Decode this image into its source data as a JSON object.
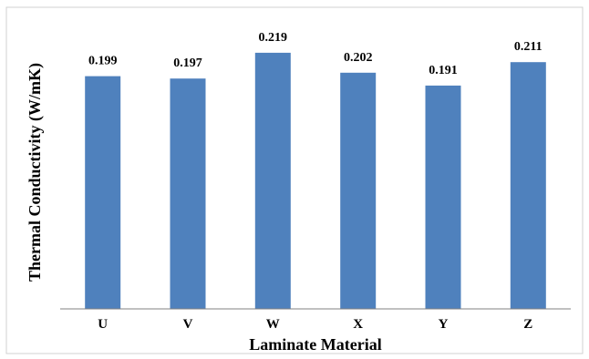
{
  "chart_data": {
    "type": "bar",
    "title": "",
    "xlabel": "Laminate Material",
    "ylabel": "Thermal  Conductivity  (W/mK)",
    "categories": [
      "U",
      "V",
      "W",
      "X",
      "Y",
      "Z"
    ],
    "values": [
      0.199,
      0.197,
      0.219,
      0.202,
      0.191,
      0.211
    ],
    "data_labels": [
      "0.199",
      "0.197",
      "0.219",
      "0.202",
      "0.191",
      "0.211"
    ],
    "ylim": [
      0,
      0.24
    ],
    "grid": false,
    "legend": "none",
    "bar_color": "#4f81bd"
  }
}
